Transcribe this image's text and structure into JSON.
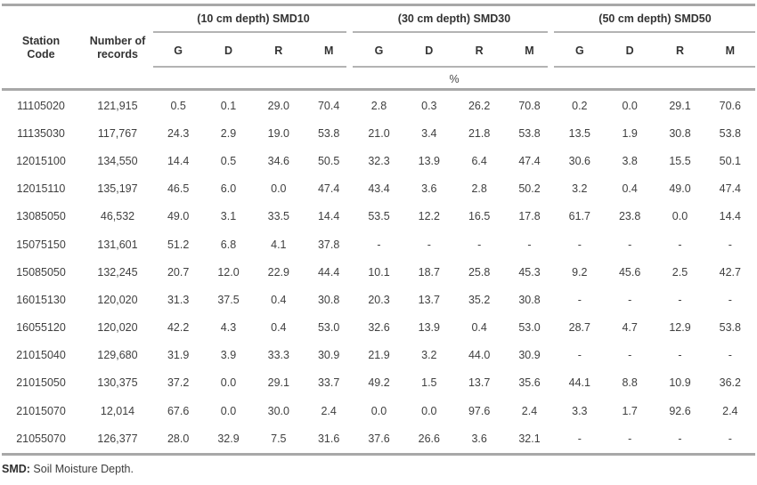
{
  "table": {
    "fixed_headers": [
      "Station\nCode",
      "Number of\nrecords"
    ],
    "col_groups": [
      {
        "label": "(10 cm depth) SMD10"
      },
      {
        "label": "(30 cm depth) SMD30"
      },
      {
        "label": "(50 cm depth) SMD50"
      }
    ],
    "sub_headers": [
      "G",
      "D",
      "R",
      "M"
    ],
    "unit_label": "%",
    "rows": [
      {
        "station": "11105020",
        "records": "121,915",
        "values": [
          "0.5",
          "0.1",
          "29.0",
          "70.4",
          "2.8",
          "0.3",
          "26.2",
          "70.8",
          "0.2",
          "0.0",
          "29.1",
          "70.6"
        ]
      },
      {
        "station": "11135030",
        "records": "117,767",
        "values": [
          "24.3",
          "2.9",
          "19.0",
          "53.8",
          "21.0",
          "3.4",
          "21.8",
          "53.8",
          "13.5",
          "1.9",
          "30.8",
          "53.8"
        ]
      },
      {
        "station": "12015100",
        "records": "134,550",
        "values": [
          "14.4",
          "0.5",
          "34.6",
          "50.5",
          "32.3",
          "13.9",
          "6.4",
          "47.4",
          "30.6",
          "3.8",
          "15.5",
          "50.1"
        ]
      },
      {
        "station": "12015110",
        "records": "135,197",
        "values": [
          "46.5",
          "6.0",
          "0.0",
          "47.4",
          "43.4",
          "3.6",
          "2.8",
          "50.2",
          "3.2",
          "0.4",
          "49.0",
          "47.4"
        ]
      },
      {
        "station": "13085050",
        "records": "46,532",
        "values": [
          "49.0",
          "3.1",
          "33.5",
          "14.4",
          "53.5",
          "12.2",
          "16.5",
          "17.8",
          "61.7",
          "23.8",
          "0.0",
          "14.4"
        ]
      },
      {
        "station": "15075150",
        "records": "131,601",
        "values": [
          "51.2",
          "6.8",
          "4.1",
          "37.8",
          "-",
          "-",
          "-",
          "-",
          "-",
          "-",
          "-",
          "-"
        ]
      },
      {
        "station": "15085050",
        "records": "132,245",
        "values": [
          "20.7",
          "12.0",
          "22.9",
          "44.4",
          "10.1",
          "18.7",
          "25.8",
          "45.3",
          "9.2",
          "45.6",
          "2.5",
          "42.7"
        ]
      },
      {
        "station": "16015130",
        "records": "120,020",
        "values": [
          "31.3",
          "37.5",
          "0.4",
          "30.8",
          "20.3",
          "13.7",
          "35.2",
          "30.8",
          "-",
          "-",
          "-",
          "-"
        ]
      },
      {
        "station": "16055120",
        "records": "120,020",
        "values": [
          "42.2",
          "4.3",
          "0.4",
          "53.0",
          "32.6",
          "13.9",
          "0.4",
          "53.0",
          "28.7",
          "4.7",
          "12.9",
          "53.8"
        ]
      },
      {
        "station": "21015040",
        "records": "129,680",
        "values": [
          "31.9",
          "3.9",
          "33.3",
          "30.9",
          "21.9",
          "3.2",
          "44.0",
          "30.9",
          "-",
          "-",
          "-",
          "-"
        ]
      },
      {
        "station": "21015050",
        "records": "130,375",
        "values": [
          "37.2",
          "0.0",
          "29.1",
          "33.7",
          "49.2",
          "1.5",
          "13.7",
          "35.6",
          "44.1",
          "8.8",
          "10.9",
          "36.2"
        ]
      },
      {
        "station": "21015070",
        "records": "12,014",
        "values": [
          "67.6",
          "0.0",
          "30.0",
          "2.4",
          "0.0",
          "0.0",
          "97.6",
          "2.4",
          "3.3",
          "1.7",
          "92.6",
          "2.4"
        ]
      },
      {
        "station": "21055070",
        "records": "126,377",
        "values": [
          "28.0",
          "32.9",
          "7.5",
          "31.6",
          "37.6",
          "26.6",
          "3.6",
          "32.1",
          "-",
          "-",
          "-",
          "-"
        ]
      }
    ],
    "footnote_abbr": "SMD:",
    "footnote_text": " Soil Moisture Depth."
  },
  "colors": {
    "background": "#ffffff",
    "text": "#404040",
    "header_text": "#333333",
    "rule_heavy": "#a8a8a8",
    "rule_light": "#b3b3b3"
  }
}
